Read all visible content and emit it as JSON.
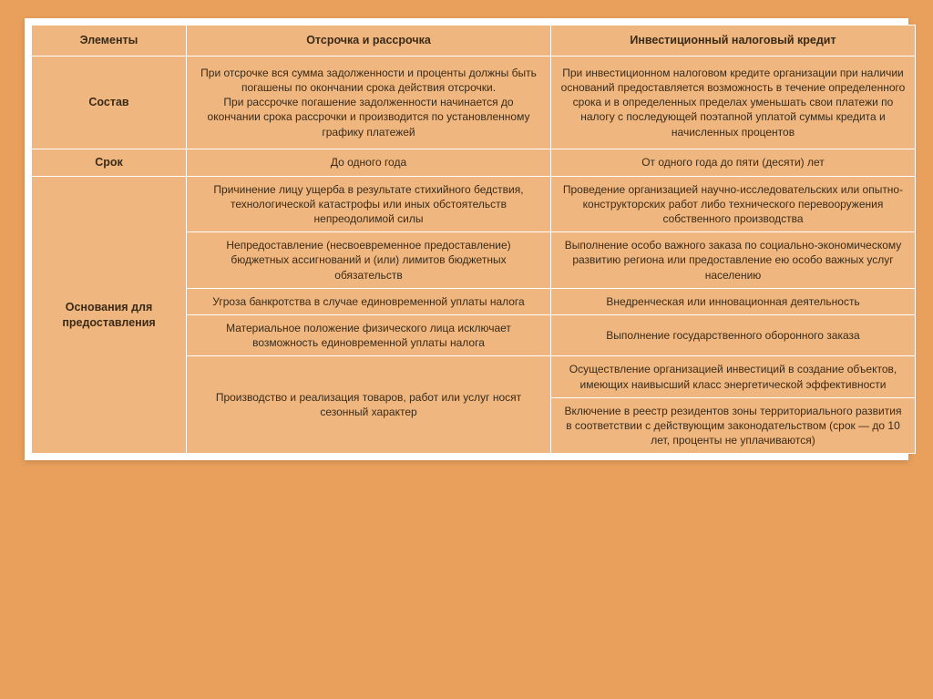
{
  "colors": {
    "page_bg": "#e8a05c",
    "cell_bg": "#efb77f",
    "border": "#ffffff",
    "text": "#3a2a18"
  },
  "header": {
    "col1": "Элементы",
    "col2": "Отсрочка и рассрочка",
    "col3": "Инвестиционный налоговый кредит"
  },
  "row1": {
    "label": "Состав",
    "deferral": "При отсрочке вся сумма задолженности и проценты должны быть погашены по окончании срока действия отсрочки.\nПри рассрочке погашение задолженности начинается до окончании срока рассрочки и производится по установленному графику платежей",
    "credit": "При инвестиционном налоговом кредите организации при наличии оснований предоставляется возможность в течение определенного срока и в определенных пределах уменьшать свои платежи по налогу с последующей поэтапной уплатой суммы кредита и начисленных процентов"
  },
  "row2": {
    "label": "Срок",
    "deferral": "До одного года",
    "credit": "От одного года до пяти (десяти) лет"
  },
  "row3": {
    "label": "Основания для предоставления",
    "deferral_items": [
      "Причинение лицу ущерба в результате стихийного бедствия, технологической катастрофы или иных обстоятельств непреодолимой силы",
      "Непредоставление (несвоевременное предоставление) бюджетных ассигнований и (или) лимитов бюджетных обязательств",
      "Угроза банкротства в случае единовременной уплаты налога",
      "Материальное положение физического лица исключает возможность единовременной уплаты налога",
      "Производство и реализация товаров, работ или услуг носят сезонный характер"
    ],
    "credit_items": [
      "Проведение организацией научно-исследовательских или опытно-конструкторских работ либо технического перевооружения собственного производства",
      "Выполнение особо важного заказа по социально-экономическому развитию региона или предоставление ею особо важных услуг населению",
      "Внедренческая или инновационная деятельность",
      "Выполнение государственного оборонного заказа",
      "Осуществление организацией инвестиций в создание объектов, имеющих наивысший класс энергетической эффективности",
      "Включение в реестр резидентов зоны территориального развития в соответствии с действующим законодательством (срок — до 10 лет, проценты не уплачиваются)"
    ]
  }
}
